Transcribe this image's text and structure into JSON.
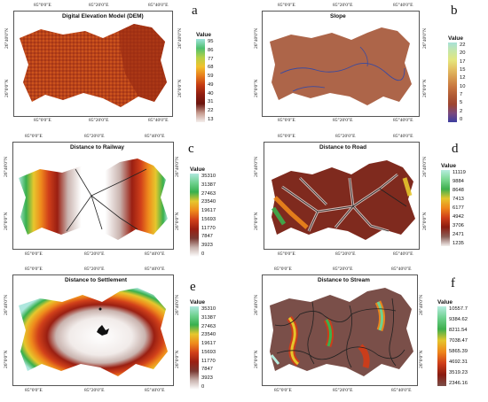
{
  "panels": [
    {
      "id": "a",
      "title": "Digital Elevation Model (DEM)",
      "top_coords": [
        "85°0'0\"E",
        "85°20'0\"E",
        "85°40'0\"E"
      ],
      "bottom_coords": [
        "85°0'0\"E",
        "85°20'0\"E",
        "85°40'0\"E"
      ],
      "left_coords": [
        "26°0'0\"N",
        "26°40'0\"N"
      ],
      "right_coords": [
        "26°0'0\"N",
        "26°40'0\"N"
      ],
      "legend_title": "Value",
      "legend_values": [
        "95",
        "86",
        "77",
        "68",
        "59",
        "49",
        "40",
        "31",
        "22",
        "13"
      ],
      "legend_colors": [
        "#9fe3dc",
        "#4fc06f",
        "#b4d146",
        "#f2c12c",
        "#e77b1c",
        "#c33a13",
        "#8f1d10",
        "#6b150e",
        "#c59a8e",
        "#f4efec"
      ]
    },
    {
      "id": "b",
      "title": "Slope",
      "top_coords": [
        "85°0'0\"E",
        "85°20'0\"E",
        "85°40'0\"E"
      ],
      "bottom_coords": [
        "85°0'0\"E",
        "85°20'0\"E",
        "85°40'0\"E"
      ],
      "left_coords": [
        "26°0'0\"N",
        "26°40'0\"N"
      ],
      "right_coords": [
        "26°0'0\"N",
        "26°40'0\"N"
      ],
      "legend_title": "Value",
      "legend_values": [
        "22",
        "20",
        "17",
        "15",
        "12",
        "10",
        "7",
        "5",
        "2",
        "0"
      ],
      "legend_colors": [
        "#a7e0d8",
        "#c7e6a5",
        "#e5e67d",
        "#e4c063",
        "#d79a4f",
        "#c8763f",
        "#b05a34",
        "#9d4530",
        "#7a4a7f",
        "#3d3ea0"
      ]
    },
    {
      "id": "c",
      "title": "Distance to Railway",
      "top_coords": [
        "85°0'0\"E",
        "85°20'0\"E",
        "85°40'0\"E"
      ],
      "bottom_coords": [
        "85°0'0\"E",
        "85°20'0\"E",
        "85°40'0\"E"
      ],
      "left_coords": [
        "26°0'0\"N",
        "26°40'0\"N"
      ],
      "right_coords": [
        "26°0'0\"N",
        "26°40'0\"N"
      ],
      "legend_title": "Value",
      "legend_values": [
        "35310",
        "31387",
        "27463",
        "23540",
        "19617",
        "15693",
        "11770",
        "7847",
        "3923",
        "0"
      ],
      "legend_colors": [
        "#aee7de",
        "#6fd18f",
        "#38b04e",
        "#e6c72d",
        "#ef8a1c",
        "#d1401a",
        "#9a1f12",
        "#7a3a33",
        "#c9b3ae",
        "#ffffff"
      ]
    },
    {
      "id": "d",
      "title": "Distance to Road",
      "top_coords": [
        "85°0'0\"E",
        "85°20'0\"E",
        "85°40'0\"E"
      ],
      "bottom_coords": [
        "85°0'0\"E",
        "85°20'0\"E",
        "85°40'0\"E"
      ],
      "left_coords": [
        "26°0'0\"N",
        "26°40'0\"N"
      ],
      "right_coords": [
        "26°0'0\"N",
        "26°40'0\"N"
      ],
      "legend_title": "Value",
      "legend_values": [
        "11119",
        "9884",
        "8648",
        "7413",
        "6177",
        "4942",
        "3706",
        "2471",
        "1235"
      ],
      "legend_colors": [
        "#b6ecdf",
        "#7bd893",
        "#3daf4d",
        "#e5c52c",
        "#ee861b",
        "#cf3d19",
        "#8a1b10",
        "#8a5e57",
        "#f4f0ee"
      ]
    },
    {
      "id": "e",
      "title": "Distance to Settlement",
      "top_coords": [
        "85°0'0\"E",
        "85°20'0\"E",
        "85°40'0\"E"
      ],
      "bottom_coords": [
        "85°0'0\"E",
        "85°20'0\"E",
        "85°40'0\"E"
      ],
      "left_coords": [
        "26°0'0\"N",
        "26°40'0\"N"
      ],
      "right_coords": [
        "26°0'0\"N",
        "26°40'0\"N"
      ],
      "legend_title": "Value",
      "legend_values": [
        "35310",
        "31387",
        "27463",
        "23540",
        "19617",
        "15693",
        "11770",
        "7847",
        "3923",
        "0"
      ],
      "legend_colors": [
        "#aee7de",
        "#6fd18f",
        "#38b04e",
        "#e6c72d",
        "#ef8a1c",
        "#d1401a",
        "#9a1f12",
        "#7a3a33",
        "#c9b3ae",
        "#ffffff"
      ]
    },
    {
      "id": "f",
      "title": "Distance to Stream",
      "top_coords": [
        "85°0'0\"E",
        "85°20'0\"E",
        "85°40'0\"E"
      ],
      "bottom_coords": [
        "85°0'0\"E",
        "85°20'0\"E",
        "85°40'0\"E"
      ],
      "left_coords": [
        "26°0'0\"N",
        "26°40'0\"N"
      ],
      "right_coords": [
        "26°0'0\"N",
        "26°40'0\"N"
      ],
      "legend_title": "Value",
      "legend_values": [
        "10557.7",
        "9384.62",
        "8211.54",
        "7038.47",
        "5865.39",
        "4692.31",
        "3519.23",
        "2346.16"
      ],
      "legend_colors": [
        "#b6ecdf",
        "#6fd18f",
        "#3daf4d",
        "#e5c52c",
        "#ee861b",
        "#cf3d19",
        "#8a1b10",
        "#7a4f49"
      ]
    }
  ]
}
